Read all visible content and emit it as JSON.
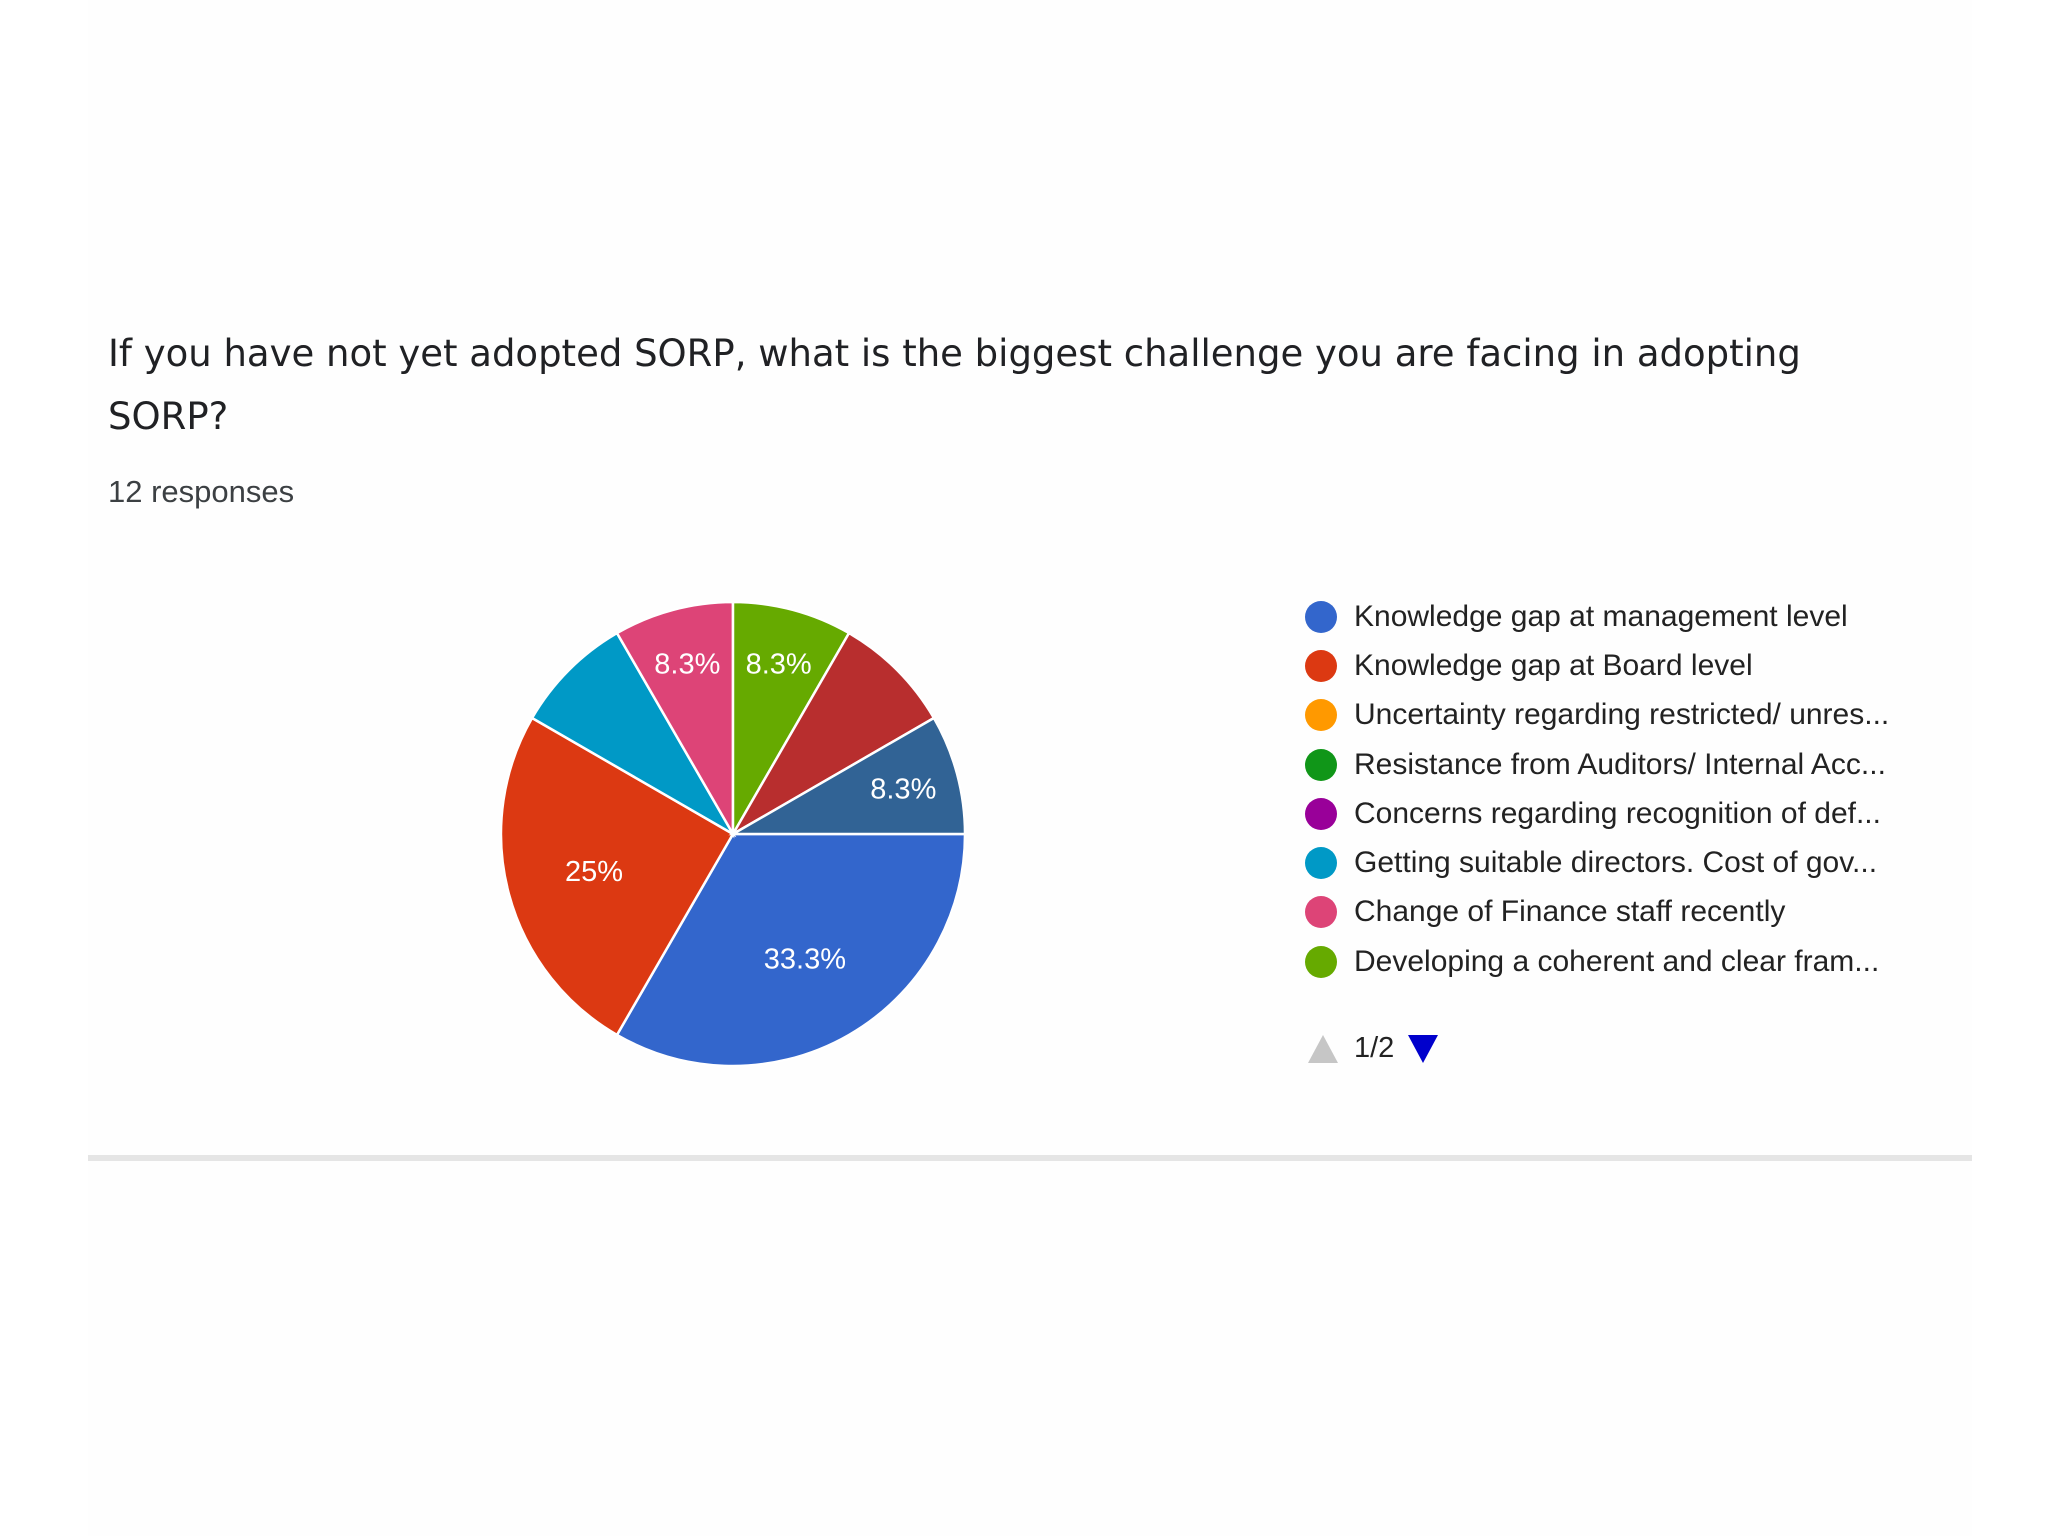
{
  "question": {
    "title": "If you have not yet adopted SORP, what is the biggest challenge you are facing in adopting SORP?",
    "responses": "12 responses"
  },
  "chart_data": {
    "type": "pie",
    "title": "If you have not yet adopted SORP, what is the biggest challenge you are facing in adopting SORP?",
    "total_responses": 12,
    "slices": [
      {
        "label": "Knowledge gap at management level",
        "value": 4,
        "percent_label": "33.3%",
        "color": "#3366cc"
      },
      {
        "label": "Knowledge gap at Board level",
        "value": 3,
        "percent_label": "25%",
        "color": "#dc3912"
      },
      {
        "label": "Getting suitable directors. Cost of gov...",
        "value": 1,
        "percent_label": "",
        "color": "#0099c6"
      },
      {
        "label": "Change of Finance staff recently",
        "value": 1,
        "percent_label": "8.3%",
        "color": "#dd4477"
      },
      {
        "label": "Developing a coherent and clear fram...",
        "value": 1,
        "percent_label": "8.3%",
        "color": "#66aa00"
      },
      {
        "label": "",
        "value": 1,
        "percent_label": "",
        "color": "#b82e2e"
      },
      {
        "label": "",
        "value": 1,
        "percent_label": "8.3%",
        "color": "#316395"
      }
    ],
    "legend": [
      {
        "label": "Knowledge gap at management level",
        "color": "#3366cc"
      },
      {
        "label": "Knowledge gap at Board level",
        "color": "#dc3912"
      },
      {
        "label": "Uncertainty regarding restricted/ unres...",
        "color": "#ff9900"
      },
      {
        "label": "Resistance from Auditors/ Internal Acc...",
        "color": "#109618"
      },
      {
        "label": "Concerns regarding recognition of def...",
        "color": "#990099"
      },
      {
        "label": "Getting suitable directors. Cost of gov...",
        "color": "#0099c6"
      },
      {
        "label": "Change of Finance staff recently",
        "color": "#dd4477"
      },
      {
        "label": "Developing a coherent and clear fram...",
        "color": "#66aa00"
      }
    ],
    "legend_placement": "right",
    "legend_page": "1/2"
  }
}
